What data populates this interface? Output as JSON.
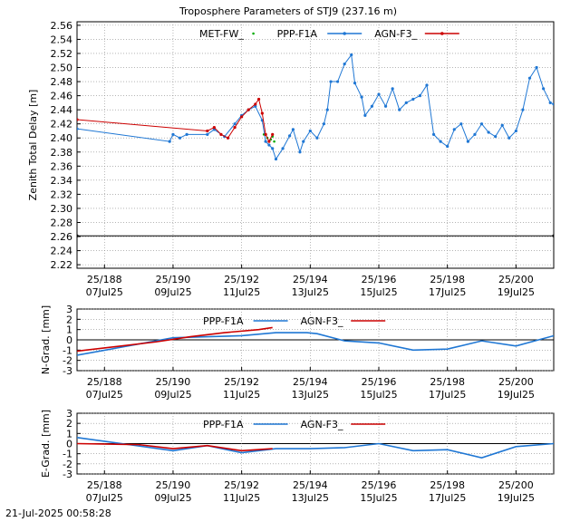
{
  "title": "Troposphere Parameters of STJ9 (237.16 m)",
  "footer": "21-Jul-2025 00:58:28",
  "x_ticks": {
    "doy": [
      "25/188",
      "25/190",
      "25/192",
      "25/194",
      "25/196",
      "25/198",
      "25/200"
    ],
    "date": [
      "07Jul25",
      "09Jul25",
      "11Jul25",
      "13Jul25",
      "15Jul25",
      "17Jul25",
      "19Jul25"
    ]
  },
  "colors": {
    "met": "#00aa00",
    "ppp": "#1f77d4",
    "agn": "#cc0000",
    "grid": "#888888"
  },
  "chart_data": [
    {
      "type": "line",
      "title": "Troposphere Parameters of STJ9 (237.16 m)",
      "ylabel": "Zenith Total Delay [m]",
      "xlim": [
        187.2,
        201.1
      ],
      "ylim": [
        2.215,
        2.565
      ],
      "yticks": [
        2.22,
        2.24,
        2.26,
        2.28,
        2.3,
        2.32,
        2.34,
        2.36,
        2.38,
        2.4,
        2.42,
        2.44,
        2.46,
        2.48,
        2.5,
        2.52,
        2.54,
        2.56
      ],
      "grid": true,
      "legend": "top-center",
      "series": [
        {
          "name": "MET-FW_",
          "style": "points",
          "x": [
            192.65,
            192.7,
            192.75,
            192.8,
            192.85,
            192.9,
            192.95
          ],
          "y": [
            2.405,
            2.395,
            2.4,
            2.39,
            2.398,
            2.402,
            2.395
          ]
        },
        {
          "name": "PPP-F1A",
          "style": "line-points",
          "x": [
            187.2,
            189.9,
            190.0,
            190.2,
            190.4,
            191.0,
            191.2,
            191.5,
            191.8,
            192.0,
            192.2,
            192.4,
            192.6,
            192.7,
            192.8,
            192.9,
            193.0,
            193.2,
            193.4,
            193.5,
            193.7,
            193.8,
            194.0,
            194.2,
            194.4,
            194.5,
            194.6,
            194.8,
            195.0,
            195.2,
            195.3,
            195.5,
            195.6,
            195.8,
            196.0,
            196.2,
            196.4,
            196.6,
            196.8,
            197.0,
            197.2,
            197.4,
            197.6,
            197.8,
            198.0,
            198.2,
            198.4,
            198.6,
            198.8,
            199.0,
            199.2,
            199.4,
            199.6,
            199.8,
            200.0,
            200.2,
            200.4,
            200.6,
            200.8,
            201.0,
            201.1
          ],
          "y": [
            2.413,
            2.395,
            2.405,
            2.4,
            2.405,
            2.405,
            2.412,
            2.402,
            2.42,
            2.432,
            2.44,
            2.445,
            2.425,
            2.395,
            2.39,
            2.385,
            2.37,
            2.385,
            2.403,
            2.412,
            2.38,
            2.395,
            2.41,
            2.4,
            2.42,
            2.44,
            2.48,
            2.48,
            2.505,
            2.518,
            2.478,
            2.458,
            2.432,
            2.445,
            2.462,
            2.445,
            2.47,
            2.44,
            2.45,
            2.455,
            2.46,
            2.475,
            2.405,
            2.395,
            2.388,
            2.412,
            2.42,
            2.395,
            2.405,
            2.42,
            2.408,
            2.402,
            2.418,
            2.4,
            2.41,
            2.44,
            2.485,
            2.5,
            2.47,
            2.45,
            2.448
          ]
        },
        {
          "name": "AGN-F3_",
          "style": "line-points",
          "x": [
            187.2,
            191.0,
            191.2,
            191.4,
            191.6,
            191.8,
            192.0,
            192.2,
            192.4,
            192.5,
            192.6,
            192.7,
            192.8,
            192.9
          ],
          "y": [
            2.426,
            2.41,
            2.415,
            2.405,
            2.4,
            2.415,
            2.43,
            2.44,
            2.448,
            2.455,
            2.435,
            2.405,
            2.395,
            2.405
          ]
        },
        {
          "name": "",
          "style": "line-points",
          "x": [
            187.2,
            201.1
          ],
          "y": [
            2.261,
            2.261
          ]
        }
      ]
    },
    {
      "type": "line",
      "ylabel": "N-Grad. [mm]",
      "xlim": [
        187.2,
        201.1
      ],
      "ylim": [
        -3,
        3
      ],
      "yticks": [
        -3,
        -2,
        -1,
        0,
        1,
        2,
        3
      ],
      "grid": true,
      "legend": "top-center",
      "series": [
        {
          "name": "PPP-F1A",
          "x": [
            187.2,
            190.0,
            191.0,
            192.0,
            193.0,
            193.9,
            194.2,
            195.0,
            196.0,
            197.0,
            198.0,
            199.0,
            200.0,
            201.1
          ],
          "y": [
            -1.5,
            0.2,
            0.3,
            0.4,
            0.7,
            0.7,
            0.6,
            -0.1,
            -0.3,
            -1.0,
            -0.9,
            -0.1,
            -0.6,
            0.4
          ]
        },
        {
          "name": "AGN-F3_",
          "x": [
            187.2,
            189.5,
            190.5,
            191.5,
            192.5,
            192.9
          ],
          "y": [
            -1.1,
            -0.2,
            0.3,
            0.7,
            1.0,
            1.2
          ]
        }
      ]
    },
    {
      "type": "line",
      "ylabel": "E-Grad. [mm]",
      "xlim": [
        187.2,
        201.1
      ],
      "ylim": [
        -3,
        3
      ],
      "yticks": [
        -3,
        -2,
        -1,
        0,
        1,
        2,
        3
      ],
      "grid": true,
      "legend": "top-center",
      "series": [
        {
          "name": "PPP-F1A",
          "x": [
            187.2,
            188.5,
            190.0,
            191.0,
            192.0,
            193.0,
            194.0,
            195.0,
            196.0,
            197.0,
            198.0,
            199.0,
            200.0,
            201.1
          ],
          "y": [
            0.6,
            0.0,
            -0.7,
            -0.2,
            -0.9,
            -0.5,
            -0.5,
            -0.4,
            0.0,
            -0.7,
            -0.6,
            -1.4,
            -0.3,
            0.0
          ]
        },
        {
          "name": "AGN-F3_",
          "x": [
            187.2,
            189.0,
            190.0,
            191.0,
            192.0,
            192.9
          ],
          "y": [
            0.0,
            -0.1,
            -0.5,
            -0.2,
            -0.7,
            -0.5
          ]
        }
      ]
    }
  ]
}
